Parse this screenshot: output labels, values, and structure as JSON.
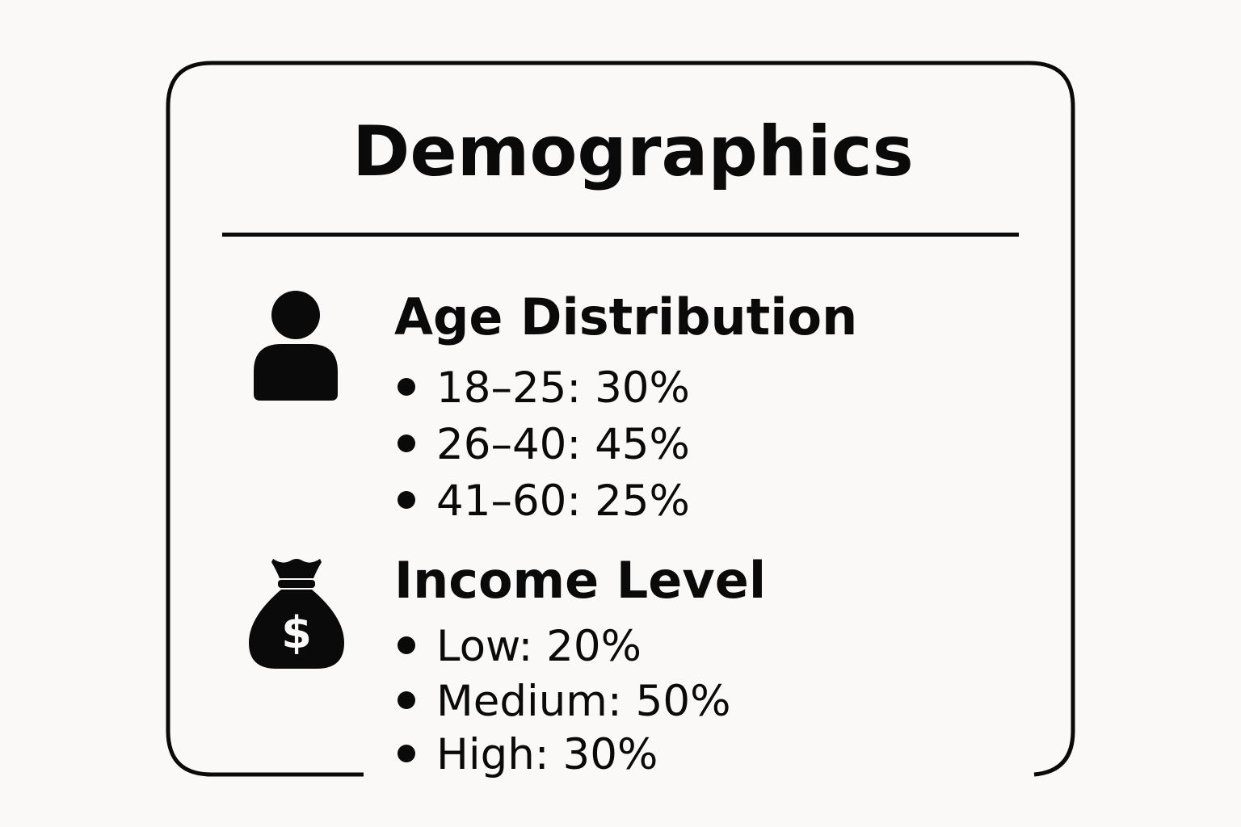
{
  "card": {
    "title": "Demographics"
  },
  "sections": [
    {
      "icon": "person-icon",
      "heading": "Age Distribution",
      "items": [
        "18–25: 30%",
        "26–40: 45%",
        "41–60: 25%"
      ]
    },
    {
      "icon": "money-bag-icon",
      "heading": "Income Level",
      "items": [
        "Low: 20%",
        "Medium: 50%",
        "High: 30%"
      ]
    }
  ],
  "colors": {
    "background": "#fbf9f8",
    "ink": "#0a0a0a"
  }
}
